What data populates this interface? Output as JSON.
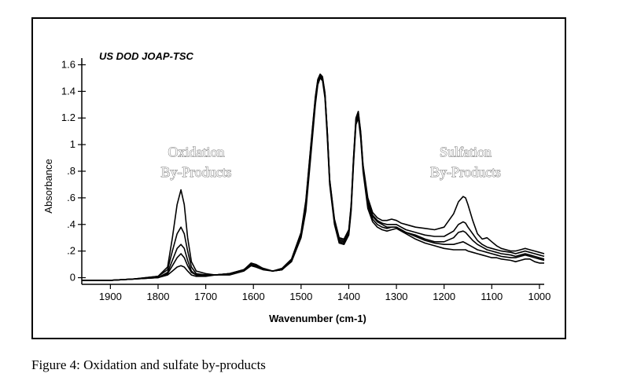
{
  "figure": {
    "watermark": "US DOD JOAP-TSC",
    "caption": "Figure 4:  Oxidation and sulfate by-products"
  },
  "chart_data": {
    "type": "line",
    "xlabel": "Wavenumber (cm-1)",
    "ylabel": "Absorbance",
    "xlim": [
      1960,
      990
    ],
    "x_reversed": true,
    "ylim": [
      -0.05,
      1.65
    ],
    "x_ticks": [
      1900,
      1800,
      1700,
      1600,
      1500,
      1400,
      1300,
      1200,
      1100,
      1000
    ],
    "x_tick_labels": [
      "1900",
      "1800",
      "1700",
      "1600",
      "1500",
      "1400",
      "1300",
      "1200",
      "1100",
      "1000"
    ],
    "y_ticks": [
      0,
      0.2,
      0.4,
      0.6,
      0.8,
      1.0,
      1.2,
      1.4,
      1.6
    ],
    "y_tick_labels": [
      "0",
      ".2",
      ".4",
      ".6",
      ".8",
      "1",
      "1.2",
      "1.4",
      "1.6"
    ],
    "grid": false,
    "x": [
      1960,
      1900,
      1850,
      1800,
      1780,
      1770,
      1760,
      1752,
      1745,
      1738,
      1730,
      1720,
      1700,
      1680,
      1650,
      1620,
      1605,
      1595,
      1580,
      1560,
      1540,
      1520,
      1500,
      1490,
      1480,
      1470,
      1465,
      1460,
      1455,
      1450,
      1445,
      1440,
      1430,
      1420,
      1410,
      1400,
      1395,
      1390,
      1385,
      1380,
      1375,
      1370,
      1360,
      1350,
      1340,
      1330,
      1320,
      1310,
      1300,
      1290,
      1280,
      1260,
      1240,
      1220,
      1200,
      1180,
      1170,
      1160,
      1155,
      1150,
      1140,
      1130,
      1120,
      1110,
      1100,
      1090,
      1080,
      1060,
      1050,
      1040,
      1030,
      1020,
      1010,
      1000,
      990
    ],
    "series": [
      {
        "values": [
          -0.02,
          -0.02,
          -0.01,
          0.0,
          0.02,
          0.05,
          0.08,
          0.09,
          0.08,
          0.05,
          0.02,
          0.01,
          0.01,
          0.02,
          0.02,
          0.05,
          0.09,
          0.08,
          0.06,
          0.05,
          0.06,
          0.12,
          0.3,
          0.5,
          0.9,
          1.3,
          1.45,
          1.5,
          1.48,
          1.35,
          1.05,
          0.7,
          0.4,
          0.26,
          0.25,
          0.32,
          0.5,
          0.85,
          1.15,
          1.2,
          1.05,
          0.8,
          0.52,
          0.42,
          0.38,
          0.36,
          0.35,
          0.36,
          0.37,
          0.35,
          0.33,
          0.29,
          0.26,
          0.24,
          0.22,
          0.21,
          0.21,
          0.21,
          0.21,
          0.2,
          0.19,
          0.18,
          0.17,
          0.16,
          0.15,
          0.15,
          0.14,
          0.13,
          0.12,
          0.13,
          0.14,
          0.14,
          0.12,
          0.11,
          0.11
        ]
      },
      {
        "values": [
          -0.02,
          -0.02,
          -0.01,
          0.0,
          0.03,
          0.09,
          0.15,
          0.18,
          0.15,
          0.09,
          0.04,
          0.02,
          0.02,
          0.02,
          0.03,
          0.06,
          0.1,
          0.09,
          0.07,
          0.05,
          0.06,
          0.13,
          0.32,
          0.55,
          0.95,
          1.33,
          1.47,
          1.51,
          1.49,
          1.37,
          1.08,
          0.72,
          0.41,
          0.27,
          0.26,
          0.33,
          0.52,
          0.87,
          1.17,
          1.22,
          1.07,
          0.82,
          0.55,
          0.44,
          0.4,
          0.38,
          0.37,
          0.38,
          0.38,
          0.36,
          0.34,
          0.31,
          0.28,
          0.26,
          0.25,
          0.25,
          0.26,
          0.27,
          0.26,
          0.25,
          0.23,
          0.21,
          0.2,
          0.19,
          0.18,
          0.17,
          0.16,
          0.15,
          0.15,
          0.16,
          0.17,
          0.16,
          0.15,
          0.14,
          0.13
        ]
      },
      {
        "values": [
          -0.02,
          -0.02,
          -0.01,
          0.0,
          0.04,
          0.13,
          0.22,
          0.25,
          0.22,
          0.13,
          0.05,
          0.02,
          0.02,
          0.02,
          0.03,
          0.06,
          0.1,
          0.09,
          0.07,
          0.05,
          0.06,
          0.13,
          0.32,
          0.56,
          0.96,
          1.34,
          1.48,
          1.52,
          1.5,
          1.38,
          1.09,
          0.73,
          0.42,
          0.28,
          0.27,
          0.34,
          0.53,
          0.88,
          1.18,
          1.23,
          1.08,
          0.83,
          0.57,
          0.46,
          0.42,
          0.4,
          0.38,
          0.38,
          0.38,
          0.36,
          0.34,
          0.32,
          0.29,
          0.27,
          0.27,
          0.3,
          0.34,
          0.35,
          0.34,
          0.32,
          0.28,
          0.25,
          0.23,
          0.21,
          0.2,
          0.19,
          0.18,
          0.17,
          0.16,
          0.17,
          0.18,
          0.17,
          0.16,
          0.15,
          0.14
        ]
      },
      {
        "values": [
          -0.02,
          -0.02,
          -0.01,
          0.01,
          0.06,
          0.2,
          0.33,
          0.38,
          0.33,
          0.2,
          0.08,
          0.03,
          0.02,
          0.02,
          0.03,
          0.06,
          0.1,
          0.09,
          0.07,
          0.05,
          0.06,
          0.13,
          0.33,
          0.57,
          0.97,
          1.35,
          1.48,
          1.52,
          1.5,
          1.38,
          1.09,
          0.73,
          0.43,
          0.29,
          0.28,
          0.35,
          0.54,
          0.89,
          1.19,
          1.24,
          1.09,
          0.84,
          0.58,
          0.47,
          0.43,
          0.41,
          0.4,
          0.4,
          0.4,
          0.38,
          0.36,
          0.34,
          0.32,
          0.31,
          0.31,
          0.35,
          0.4,
          0.42,
          0.41,
          0.38,
          0.33,
          0.28,
          0.25,
          0.23,
          0.22,
          0.21,
          0.2,
          0.19,
          0.18,
          0.19,
          0.2,
          0.19,
          0.18,
          0.17,
          0.16
        ]
      },
      {
        "values": [
          -0.02,
          -0.02,
          -0.01,
          0.01,
          0.08,
          0.3,
          0.55,
          0.66,
          0.55,
          0.3,
          0.12,
          0.05,
          0.03,
          0.02,
          0.03,
          0.06,
          0.11,
          0.1,
          0.07,
          0.05,
          0.07,
          0.14,
          0.34,
          0.58,
          0.98,
          1.36,
          1.49,
          1.53,
          1.51,
          1.39,
          1.1,
          0.74,
          0.44,
          0.3,
          0.29,
          0.36,
          0.55,
          0.9,
          1.2,
          1.25,
          1.1,
          0.85,
          0.6,
          0.49,
          0.45,
          0.43,
          0.43,
          0.44,
          0.43,
          0.41,
          0.4,
          0.38,
          0.37,
          0.36,
          0.38,
          0.48,
          0.57,
          0.61,
          0.6,
          0.55,
          0.43,
          0.33,
          0.29,
          0.3,
          0.27,
          0.24,
          0.22,
          0.2,
          0.2,
          0.21,
          0.22,
          0.21,
          0.2,
          0.19,
          0.18
        ]
      }
    ],
    "annotations": [
      {
        "text": "Oxidation",
        "x": 1720,
        "y": 0.91
      },
      {
        "text": "By-Products",
        "x": 1720,
        "y": 0.76
      },
      {
        "text": "Sulfation",
        "x": 1155,
        "y": 0.91
      },
      {
        "text": "By-Products",
        "x": 1155,
        "y": 0.76
      }
    ]
  }
}
